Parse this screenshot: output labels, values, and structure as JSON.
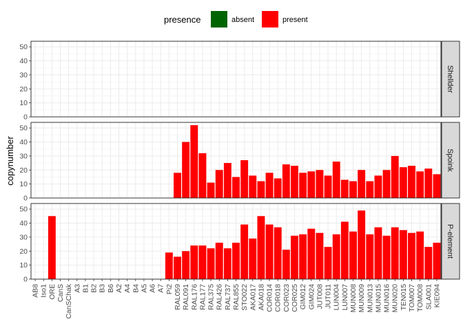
{
  "chart_data": {
    "type": "bar",
    "ylabel": "copynumber",
    "xlabel": "",
    "ylim": [
      0,
      54
    ],
    "yticks": [
      0,
      10,
      20,
      30,
      40,
      50
    ],
    "grid": true,
    "legend": {
      "title": "presence",
      "position": "top",
      "entries": [
        {
          "label": "absent",
          "color": "#006400"
        },
        {
          "label": "present",
          "color": "#ff0000"
        }
      ]
    },
    "categories": [
      "AB8",
      "Iso1",
      "ORE",
      "CanS",
      "CanSChak",
      "A3",
      "B1",
      "B2",
      "B3",
      "B6",
      "A2",
      "A4",
      "B4",
      "A5",
      "A6",
      "A7",
      "Pi2",
      "RAL059",
      "RAL091",
      "RAL176",
      "RAL177",
      "RAL375",
      "RAL426",
      "RAL737",
      "RAL855",
      "STO022",
      "AKA017",
      "AKA018",
      "COR014",
      "COR018",
      "COR023",
      "COR025",
      "GIM012",
      "GIM024",
      "JUT008",
      "JUT011",
      "LUN004",
      "LUN007",
      "MUN008",
      "MUN009",
      "MUN013",
      "MUN015",
      "MUN016",
      "MUN020",
      "TEN015",
      "TOM007",
      "TOM008",
      "SLA001",
      "KIE094"
    ],
    "panels": [
      {
        "name": "Shellder",
        "values": [
          0,
          0,
          0,
          0,
          0,
          0,
          0,
          0,
          0,
          0,
          0,
          0,
          0,
          0,
          0,
          0,
          0,
          0,
          0,
          0,
          0,
          0,
          0,
          0,
          0,
          0,
          0,
          0,
          0,
          0,
          0,
          0,
          0,
          0,
          0,
          0,
          0,
          0,
          0,
          0,
          0,
          0,
          0,
          0,
          0,
          0,
          0,
          0,
          0
        ],
        "presence": [
          "absent",
          "absent",
          "absent",
          "absent",
          "absent",
          "absent",
          "absent",
          "absent",
          "absent",
          "absent",
          "absent",
          "absent",
          "absent",
          "absent",
          "absent",
          "absent",
          "absent",
          "absent",
          "absent",
          "absent",
          "absent",
          "absent",
          "absent",
          "absent",
          "absent",
          "absent",
          "absent",
          "absent",
          "absent",
          "absent",
          "absent",
          "absent",
          "absent",
          "absent",
          "absent",
          "absent",
          "absent",
          "absent",
          "absent",
          "absent",
          "absent",
          "absent",
          "absent",
          "absent",
          "absent",
          "absent",
          "absent",
          "absent",
          "absent"
        ]
      },
      {
        "name": "Spoink",
        "values": [
          0,
          0,
          0,
          0,
          0,
          0,
          0,
          0,
          0,
          0,
          0,
          0,
          0,
          0,
          0,
          0,
          0,
          18,
          40,
          52,
          32,
          11,
          20,
          25,
          15,
          27,
          16,
          12,
          18,
          14,
          24,
          23,
          18,
          19,
          20,
          16,
          26,
          13,
          12,
          20,
          12,
          16,
          20,
          30,
          22,
          23,
          19,
          21,
          17
        ],
        "presence": [
          "absent",
          "absent",
          "absent",
          "absent",
          "absent",
          "absent",
          "absent",
          "absent",
          "absent",
          "absent",
          "absent",
          "absent",
          "absent",
          "absent",
          "absent",
          "absent",
          "absent",
          "present",
          "present",
          "present",
          "present",
          "present",
          "present",
          "present",
          "present",
          "present",
          "present",
          "present",
          "present",
          "present",
          "present",
          "present",
          "present",
          "present",
          "present",
          "present",
          "present",
          "present",
          "present",
          "present",
          "present",
          "present",
          "present",
          "present",
          "present",
          "present",
          "present",
          "present",
          "present"
        ]
      },
      {
        "name": "P-element",
        "values": [
          0,
          0,
          45,
          0,
          0,
          0,
          0,
          0,
          0,
          0,
          0,
          0,
          0,
          0,
          0,
          0,
          19,
          16,
          20,
          24,
          24,
          22,
          26,
          22,
          26,
          39,
          29,
          45,
          39,
          37,
          21,
          31,
          32,
          36,
          33,
          23,
          32,
          41,
          34,
          49,
          32,
          37,
          31,
          37,
          35,
          33,
          34,
          23,
          26
        ],
        "presence": [
          "absent",
          "absent",
          "present",
          "absent",
          "absent",
          "absent",
          "absent",
          "absent",
          "absent",
          "absent",
          "absent",
          "absent",
          "absent",
          "absent",
          "absent",
          "absent",
          "present",
          "present",
          "present",
          "present",
          "present",
          "present",
          "present",
          "present",
          "present",
          "present",
          "present",
          "present",
          "present",
          "present",
          "present",
          "present",
          "present",
          "present",
          "present",
          "present",
          "present",
          "present",
          "present",
          "present",
          "present",
          "present",
          "present",
          "present",
          "present",
          "present",
          "present",
          "present",
          "present"
        ]
      }
    ]
  }
}
